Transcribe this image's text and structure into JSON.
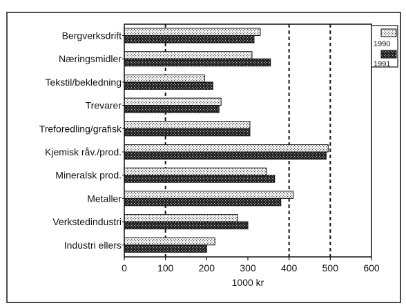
{
  "chart_data": {
    "type": "bar",
    "orientation": "horizontal",
    "title": "",
    "xlabel": "1000 kr",
    "ylabel": "",
    "xlim": [
      0,
      600
    ],
    "xticks": [
      "0",
      "100",
      "200",
      "300",
      "400",
      "500",
      "600"
    ],
    "grid": "vertical dashed lines at 100, 400, 500",
    "legend_position": "top-right",
    "categories": [
      "Bergverksdrift",
      "Næringsmidler",
      "Tekstil/bekledning",
      "Trevarer",
      "Treforedling/grafisk",
      "Kjemisk råv./prod.",
      "Mineralsk prod.",
      "Metaller",
      "Verkstedindustri",
      "Industri ellers"
    ],
    "series": [
      {
        "name": "1990",
        "pattern": "light-dots",
        "values": [
          330,
          310,
          195,
          235,
          305,
          495,
          345,
          410,
          275,
          220
        ]
      },
      {
        "name": "1991",
        "pattern": "dark-dots",
        "values": [
          315,
          355,
          215,
          230,
          305,
          490,
          365,
          380,
          300,
          200
        ]
      }
    ]
  },
  "colors": {
    "frame": "#111111",
    "bar_edge": "#111111",
    "background": "#ffffff"
  }
}
